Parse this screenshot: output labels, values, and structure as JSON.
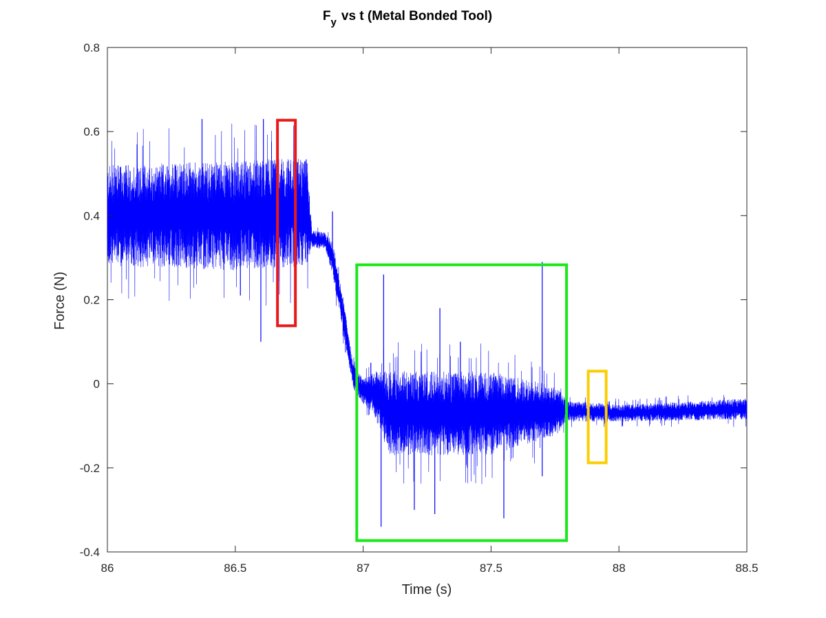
{
  "chart_data": {
    "type": "line",
    "title": {
      "main": "F",
      "subscript": "y",
      "rest": "vs t (Metal Bonded Tool)"
    },
    "xlabel": "Time (s)",
    "ylabel": "Force (N)",
    "xlim": [
      86,
      88.5
    ],
    "ylim": [
      -0.4,
      0.8
    ],
    "xticks": [
      86,
      86.5,
      87,
      87.5,
      88,
      88.5
    ],
    "xtick_labels": [
      "86",
      "86.5",
      "87",
      "87.5",
      "88",
      "88.5"
    ],
    "yticks": [
      -0.4,
      -0.2,
      0,
      0.2,
      0.4,
      0.6,
      0.8
    ],
    "ytick_labels": [
      "-0.4",
      "-0.2",
      "0",
      "0.2",
      "0.4",
      "0.6",
      "0.8"
    ],
    "grid": false,
    "series": [
      {
        "color": "#0000ff",
        "envelope": [
          {
            "t": 86.0,
            "mean": 0.4,
            "amp": 0.12
          },
          {
            "t": 86.5,
            "mean": 0.4,
            "amp": 0.13
          },
          {
            "t": 86.78,
            "mean": 0.41,
            "amp": 0.13
          },
          {
            "t": 86.8,
            "mean": 0.345,
            "amp": 0.02
          },
          {
            "t": 86.85,
            "mean": 0.34,
            "amp": 0.02
          },
          {
            "t": 86.88,
            "mean": 0.3,
            "amp": 0.04
          },
          {
            "t": 86.92,
            "mean": 0.17,
            "amp": 0.04
          },
          {
            "t": 86.96,
            "mean": 0.02,
            "amp": 0.03
          },
          {
            "t": 87.0,
            "mean": -0.02,
            "amp": 0.03
          },
          {
            "t": 87.04,
            "mean": -0.02,
            "amp": 0.05
          },
          {
            "t": 87.1,
            "mean": -0.07,
            "amp": 0.1
          },
          {
            "t": 87.5,
            "mean": -0.07,
            "amp": 0.1
          },
          {
            "t": 87.75,
            "mean": -0.065,
            "amp": 0.06
          },
          {
            "t": 87.8,
            "mean": -0.065,
            "amp": 0.025
          },
          {
            "t": 88.0,
            "mean": -0.07,
            "amp": 0.02
          },
          {
            "t": 88.5,
            "mean": -0.06,
            "amp": 0.025
          }
        ],
        "spikes": [
          {
            "t": 86.37,
            "y": 0.63
          },
          {
            "t": 86.61,
            "y": 0.63
          },
          {
            "t": 86.6,
            "y": 0.1
          },
          {
            "t": 86.52,
            "y": 0.21
          },
          {
            "t": 86.88,
            "y": 0.41
          },
          {
            "t": 87.03,
            "y": 0.05
          },
          {
            "t": 87.08,
            "y": 0.26
          },
          {
            "t": 87.07,
            "y": -0.34
          },
          {
            "t": 87.2,
            "y": -0.3
          },
          {
            "t": 87.3,
            "y": 0.18
          },
          {
            "t": 87.28,
            "y": -0.31
          },
          {
            "t": 87.38,
            "y": 0.1
          },
          {
            "t": 87.55,
            "y": -0.32
          },
          {
            "t": 87.7,
            "y": 0.29
          },
          {
            "t": 87.7,
            "y": -0.22
          }
        ]
      }
    ],
    "annotations": [
      {
        "shape": "rect",
        "color": "#e8191b",
        "x": [
          86.665,
          86.735
        ],
        "y": [
          0.138,
          0.627
        ]
      },
      {
        "shape": "rect",
        "color": "#19e819",
        "x": [
          86.975,
          87.795
        ],
        "y": [
          -0.373,
          0.283
        ]
      },
      {
        "shape": "rect",
        "color": "#fccd00",
        "x": [
          87.88,
          87.95
        ],
        "y": [
          -0.188,
          0.03
        ]
      }
    ]
  }
}
